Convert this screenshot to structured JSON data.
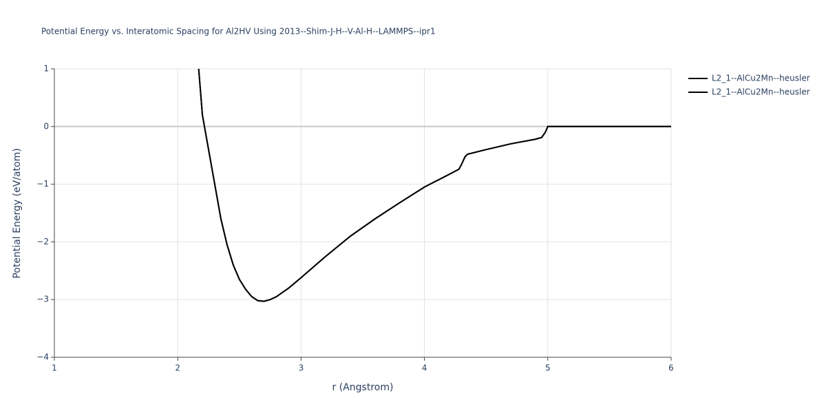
{
  "chart_data": {
    "type": "line",
    "title": "Potential Energy vs. Interatomic Spacing for Al2HV Using 2013--Shim-J-H--V-Al-H--LAMMPS--ipr1",
    "x_label": "r (Angstrom)",
    "y_label": "Potential Energy (eV/atom)",
    "x": [
      2.17,
      2.2,
      2.25,
      2.3,
      2.35,
      2.4,
      2.45,
      2.5,
      2.55,
      2.6,
      2.65,
      2.7,
      2.75,
      2.8,
      2.9,
      3.0,
      3.2,
      3.4,
      3.6,
      3.8,
      4.0,
      4.2,
      4.28,
      4.3,
      4.33,
      4.35,
      4.5,
      4.7,
      4.9,
      4.95,
      4.98,
      5.0,
      6.0
    ],
    "series": [
      {
        "name": "L2_1--AlCu2Mn--heusler",
        "color": "#000000",
        "values": [
          1,
          0.2,
          -0.4,
          -1.0,
          -1.6,
          -2.05,
          -2.4,
          -2.65,
          -2.82,
          -2.95,
          -3.02,
          -3.03,
          -3.0,
          -2.95,
          -2.8,
          -2.62,
          -2.25,
          -1.9,
          -1.6,
          -1.32,
          -1.05,
          -0.83,
          -0.74,
          -0.66,
          -0.52,
          -0.48,
          -0.4,
          -0.3,
          -0.22,
          -0.19,
          -0.1,
          0,
          0
        ]
      },
      {
        "name": "L2_1--AlCu2Mn--heusler",
        "color": "#000000",
        "values": [
          1,
          0.2,
          -0.4,
          -1.0,
          -1.6,
          -2.05,
          -2.4,
          -2.65,
          -2.82,
          -2.95,
          -3.02,
          -3.03,
          -3.0,
          -2.95,
          -2.8,
          -2.62,
          -2.25,
          -1.9,
          -1.6,
          -1.32,
          -1.05,
          -0.83,
          -0.74,
          -0.66,
          -0.52,
          -0.48,
          -0.4,
          -0.3,
          -0.22,
          -0.19,
          -0.1,
          0,
          0
        ]
      }
    ],
    "xlim": [
      1,
      6
    ],
    "xticks": [
      1,
      2,
      3,
      4,
      5,
      6
    ],
    "ylim": [
      -4,
      1
    ],
    "yticks": [
      {
        "value": -4,
        "label": "−4"
      },
      {
        "value": -3,
        "label": "−3"
      },
      {
        "value": -2,
        "label": "−2"
      },
      {
        "value": -1,
        "label": "−1"
      },
      0,
      1
    ],
    "grid": true
  }
}
